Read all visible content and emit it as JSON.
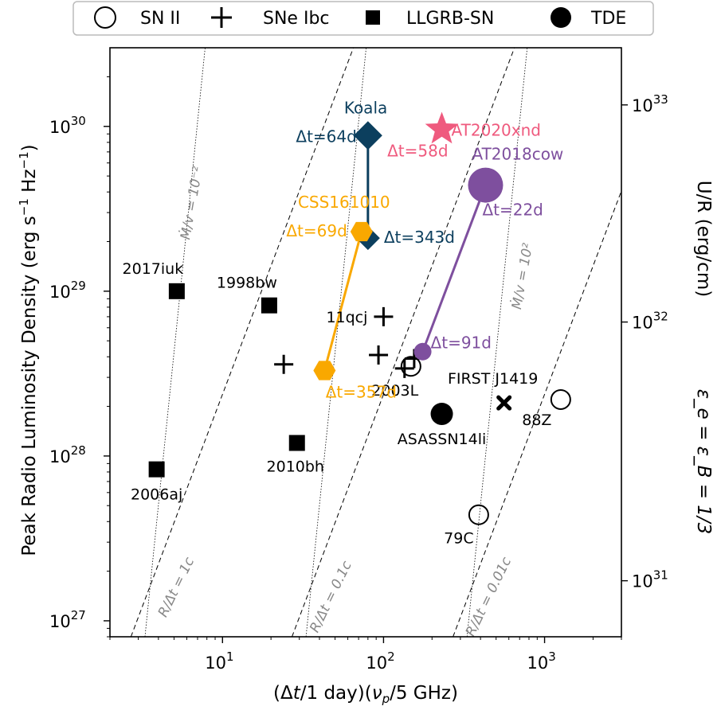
{
  "chart_data": {
    "type": "scatter",
    "xlabel_parts": [
      "(Δ",
      "t",
      "/1 day)(",
      "ν",
      "p",
      "/5 GHz)"
    ],
    "ylabel_parts": [
      "Peak Radio Luminosity Density (erg s",
      "−1",
      " Hz",
      "−1",
      ")"
    ],
    "right_label_top": "U/R (erg/cm)",
    "right_label_bottom": "ε_e = ε_B = 1/3",
    "xlog": true,
    "ylog": true,
    "xlim": [
      2.0,
      3000
    ],
    "ylim": [
      8e+26,
      3e+30
    ],
    "x_ticks": [
      {
        "value": 10,
        "base": "10",
        "exp": "1"
      },
      {
        "value": 100,
        "base": "10",
        "exp": "2"
      },
      {
        "value": 1000,
        "base": "10",
        "exp": "3"
      }
    ],
    "y_ticks": [
      {
        "value": 1e+27,
        "base": "10",
        "exp": "27"
      },
      {
        "value": 1e+28,
        "base": "10",
        "exp": "28"
      },
      {
        "value": 1e+29,
        "base": "10",
        "exp": "29"
      },
      {
        "value": 1e+30,
        "base": "10",
        "exp": "30"
      }
    ],
    "right_ticks": [
      {
        "y_value": 1.75e+27,
        "base": "10",
        "exp": "31"
      },
      {
        "y_value": 6.5e+28,
        "base": "10",
        "exp": "32"
      },
      {
        "y_value": 1.35e+30,
        "base": "10",
        "exp": "33"
      }
    ],
    "legend": {
      "placement": "top-center",
      "entries": [
        {
          "label": "SN II",
          "marker": "open-circle"
        },
        {
          "label": "SNe Ibc",
          "marker": "plus"
        },
        {
          "label": "LLGRB-SN",
          "marker": "square"
        },
        {
          "label": "TDE",
          "marker": "filled-circle"
        }
      ]
    },
    "reference_lines": {
      "velocity": [
        {
          "label": "R/Δt = 1c",
          "x_at_ymin": 2.7,
          "x_at_ymax": 65
        },
        {
          "label": "R/Δt = 0.1c",
          "x_at_ymin": 27,
          "x_at_ymax": 650
        },
        {
          "label": "R/Δt = 0.01c",
          "x_at_ymin": 270,
          "x_at_ymax": 6500
        }
      ],
      "mass_loss": [
        {
          "label": "Ṁ/v = 10⁻²",
          "x_at_ymin": 3.3,
          "x_at_ymax": 7.8
        },
        {
          "label": "Ṁ/v = 10²",
          "x_at_ymin": 330,
          "x_at_ymax": 780
        },
        {
          "label": "",
          "x_at_ymin": 33,
          "x_at_ymax": 78
        }
      ]
    },
    "points": [
      {
        "label": "2017iuk",
        "class": "LLGRB-SN",
        "x": 5.2,
        "y": 1e+29
      },
      {
        "label": "1998bw",
        "class": "LLGRB-SN",
        "x": 19.5,
        "y": 8.2e+28
      },
      {
        "label": "2006aj",
        "class": "LLGRB-SN",
        "x": 3.9,
        "y": 8.3e+27
      },
      {
        "label": "2010bh",
        "class": "LLGRB-SN",
        "x": 29,
        "y": 1.2e+28
      },
      {
        "label": "11qcj",
        "class": "SNe Ibc",
        "x": 100,
        "y": 7e+28
      },
      {
        "label": "",
        "class": "SNe Ibc",
        "x": 24,
        "y": 3.6e+28
      },
      {
        "label": "",
        "class": "SNe Ibc",
        "x": 93,
        "y": 4.1e+28
      },
      {
        "label": "2003L",
        "class": "SNe Ibc",
        "x": 135,
        "y": 3.4e+28
      },
      {
        "label": "",
        "class": "SNe Ibc",
        "x": 155,
        "y": 3.9e+28
      },
      {
        "label": "",
        "class": "SN II",
        "x": 148,
        "y": 3.5e+28
      },
      {
        "label": "88Z",
        "class": "SN II",
        "x": 1260,
        "y": 2.2e+28
      },
      {
        "label": "79C",
        "class": "SN II",
        "x": 390,
        "y": 4.4e+27
      },
      {
        "label": "ASASSN14li",
        "class": "TDE",
        "x": 230,
        "y": 1.8e+28
      },
      {
        "label": "FIRST J1419",
        "class": "cross",
        "x": 560,
        "y": 2.1e+28
      }
    ],
    "transients": [
      {
        "name": "Koala",
        "color": "#0c3f5e",
        "marker": "diamond",
        "start": {
          "x": 80,
          "y": 8.8e+29,
          "label": "Δt=64d"
        },
        "end": {
          "x": 80,
          "y": 2.1e+29,
          "label": "Δt=343d"
        }
      },
      {
        "name": "AT2020xnd",
        "color": "#ef5a7e",
        "marker": "star",
        "start": {
          "x": 230,
          "y": 9.6e+29,
          "label": "Δt=58d"
        }
      },
      {
        "name": "AT2018cow",
        "color": "#7e4f9e",
        "marker": "circle",
        "start": {
          "x": 430,
          "y": 4.4e+29,
          "label": "Δt=22d"
        },
        "end": {
          "x": 175,
          "y": 4.3e+28,
          "label": "Δt=91d"
        }
      },
      {
        "name": "CSS161010",
        "color": "#f9a800",
        "marker": "hexagon",
        "start": {
          "x": 73,
          "y": 2.3e+29,
          "label": "Δt=69d"
        },
        "end": {
          "x": 43,
          "y": 3.3e+28,
          "label": "Δt=357d"
        }
      }
    ]
  }
}
